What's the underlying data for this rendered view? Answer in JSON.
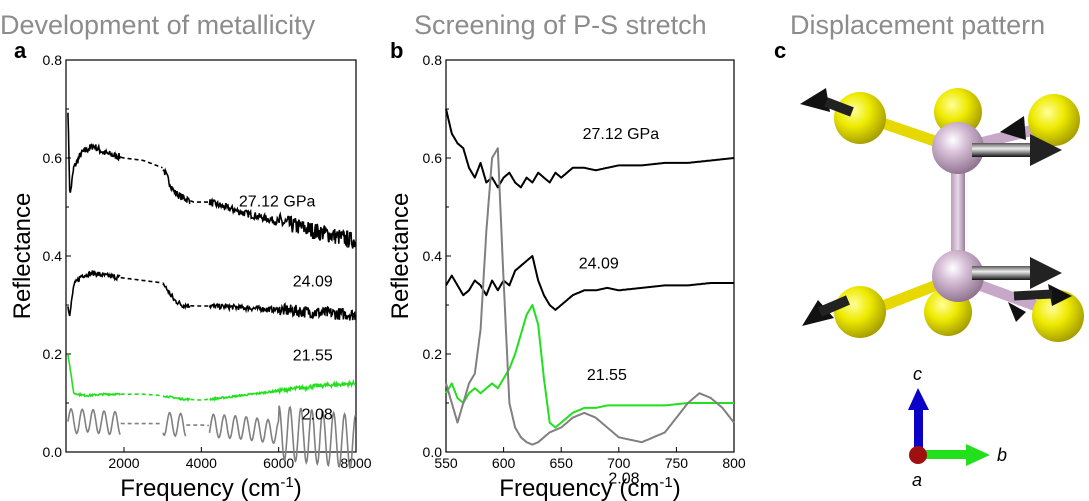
{
  "chart_data": [
    {
      "panel": "a",
      "type": "line",
      "title": "Development of metallicity",
      "xlabel": "Frequency (cm",
      "xlabel_sup": "-1",
      "xlabel_end": ")",
      "ylabel": "Reflectance",
      "xlim": [
        500,
        8000
      ],
      "ylim": [
        0,
        0.8
      ],
      "xticks": [
        "2000",
        "4000",
        "6000",
        "8000"
      ],
      "yticks": [
        "0.0",
        "0.2",
        "0.4",
        "0.6",
        "0.8"
      ],
      "series": [
        {
          "name": "27.12 GPa",
          "color": "#000000",
          "noise": 0.025,
          "gaps": [
            [
              1900,
              3000
            ],
            [
              3700,
              4200
            ]
          ],
          "x": [
            550,
            600,
            700,
            900,
            1200,
            1500,
            2000,
            2500,
            3000,
            3300,
            3500,
            3800,
            4200,
            5000,
            6000,
            7000,
            8000
          ],
          "y": [
            0.7,
            0.52,
            0.58,
            0.61,
            0.625,
            0.61,
            0.6,
            0.595,
            0.58,
            0.53,
            0.52,
            0.51,
            0.51,
            0.49,
            0.47,
            0.45,
            0.43
          ]
        },
        {
          "name": "24.09",
          "color": "#000000",
          "noise": 0.018,
          "gaps": [
            [
              1900,
              3000
            ],
            [
              3700,
              4200
            ]
          ],
          "x": [
            550,
            600,
            700,
            900,
            1200,
            1500,
            2000,
            2500,
            3000,
            3300,
            3500,
            3800,
            4200,
            5000,
            6000,
            7000,
            8000
          ],
          "y": [
            0.3,
            0.28,
            0.34,
            0.36,
            0.365,
            0.36,
            0.355,
            0.35,
            0.345,
            0.31,
            0.3,
            0.298,
            0.298,
            0.295,
            0.29,
            0.285,
            0.28
          ]
        },
        {
          "name": "21.55",
          "color": "#22e01c",
          "noise": 0.006,
          "gaps": [
            [
              1900,
              3000
            ],
            [
              3700,
              4200
            ]
          ],
          "x": [
            550,
            700,
            1000,
            1500,
            2000,
            2500,
            3000,
            3500,
            4000,
            4500,
            5000,
            6000,
            7000,
            8000
          ],
          "y": [
            0.2,
            0.12,
            0.115,
            0.118,
            0.118,
            0.118,
            0.115,
            0.108,
            0.106,
            0.11,
            0.115,
            0.125,
            0.135,
            0.14
          ]
        },
        {
          "name": "2.08",
          "color": "#808080",
          "noise": 0.03,
          "gaps": [
            [
              1900,
              3000
            ],
            [
              3600,
              4200
            ]
          ],
          "x": [
            550,
            700,
            1000,
            1500,
            2000,
            2500,
            3000,
            3500,
            4000,
            5000,
            6000,
            7000,
            8000
          ],
          "y": [
            0.07,
            0.06,
            0.065,
            0.06,
            0.058,
            0.058,
            0.058,
            0.055,
            0.055,
            0.05,
            0.04,
            0.03,
            0.02
          ]
        }
      ]
    },
    {
      "panel": "b",
      "type": "line",
      "title": "Screening of P-S stretch",
      "xlabel": "Frequency (cm",
      "xlabel_sup": "-1",
      "xlabel_end": ")",
      "ylabel": "Reflectance",
      "xlim": [
        550,
        800
      ],
      "ylim": [
        0,
        0.8
      ],
      "xticks": [
        "550",
        "600",
        "650",
        "700",
        "750",
        "800"
      ],
      "yticks": [
        "0.0",
        "0.2",
        "0.4",
        "0.6",
        "0.8"
      ],
      "series": [
        {
          "name": "27.12 GPa",
          "color": "#000000",
          "x": [
            550,
            555,
            560,
            565,
            570,
            575,
            580,
            585,
            590,
            595,
            600,
            605,
            610,
            615,
            620,
            625,
            630,
            635,
            640,
            645,
            650,
            660,
            670,
            680,
            690,
            700,
            720,
            740,
            760,
            780,
            800
          ],
          "y": [
            0.7,
            0.65,
            0.63,
            0.62,
            0.58,
            0.56,
            0.59,
            0.55,
            0.56,
            0.54,
            0.56,
            0.57,
            0.55,
            0.54,
            0.56,
            0.55,
            0.57,
            0.56,
            0.55,
            0.57,
            0.56,
            0.58,
            0.58,
            0.575,
            0.58,
            0.585,
            0.585,
            0.59,
            0.59,
            0.595,
            0.6
          ]
        },
        {
          "name": "24.09",
          "color": "#000000",
          "x": [
            550,
            555,
            560,
            565,
            570,
            575,
            580,
            585,
            590,
            595,
            600,
            605,
            610,
            615,
            620,
            625,
            630,
            635,
            640,
            645,
            650,
            660,
            670,
            680,
            690,
            700,
            720,
            740,
            760,
            780,
            800
          ],
          "y": [
            0.34,
            0.36,
            0.34,
            0.32,
            0.33,
            0.35,
            0.34,
            0.32,
            0.35,
            0.33,
            0.35,
            0.34,
            0.37,
            0.38,
            0.39,
            0.4,
            0.35,
            0.32,
            0.3,
            0.29,
            0.3,
            0.32,
            0.33,
            0.33,
            0.335,
            0.33,
            0.335,
            0.34,
            0.34,
            0.345,
            0.345
          ]
        },
        {
          "name": "21.55",
          "color": "#22e01c",
          "x": [
            550,
            555,
            560,
            565,
            570,
            575,
            580,
            585,
            590,
            595,
            600,
            605,
            610,
            615,
            620,
            625,
            630,
            635,
            640,
            645,
            650,
            660,
            670,
            680,
            690,
            700,
            720,
            740,
            760,
            780,
            800
          ],
          "y": [
            0.12,
            0.14,
            0.11,
            0.1,
            0.12,
            0.13,
            0.12,
            0.13,
            0.14,
            0.13,
            0.15,
            0.17,
            0.2,
            0.24,
            0.28,
            0.3,
            0.26,
            0.15,
            0.06,
            0.05,
            0.06,
            0.08,
            0.09,
            0.09,
            0.095,
            0.095,
            0.095,
            0.095,
            0.1,
            0.1,
            0.1
          ]
        },
        {
          "name": "2.08",
          "color": "#808080",
          "x": [
            550,
            555,
            560,
            565,
            570,
            575,
            580,
            585,
            590,
            595,
            600,
            605,
            610,
            615,
            620,
            625,
            630,
            635,
            640,
            645,
            650,
            660,
            670,
            680,
            690,
            700,
            720,
            740,
            760,
            770,
            780,
            790,
            800
          ],
          "y": [
            0.14,
            0.1,
            0.06,
            0.1,
            0.14,
            0.16,
            0.25,
            0.45,
            0.6,
            0.62,
            0.35,
            0.1,
            0.05,
            0.03,
            0.02,
            0.015,
            0.02,
            0.03,
            0.04,
            0.045,
            0.05,
            0.07,
            0.08,
            0.07,
            0.05,
            0.03,
            0.02,
            0.04,
            0.1,
            0.12,
            0.11,
            0.09,
            0.06
          ]
        }
      ]
    }
  ],
  "panel_c": {
    "title": "Displacement pattern",
    "label": "c",
    "axes": {
      "c": "c",
      "b": "b",
      "a": "a"
    },
    "colors": {
      "sulfur": "#e8e000",
      "phosphorus": "#c8a8c8",
      "arrow": "#111111",
      "axis_c": "#0a00c8",
      "axis_b": "#22e01c",
      "axis_a": "#a01010"
    }
  }
}
